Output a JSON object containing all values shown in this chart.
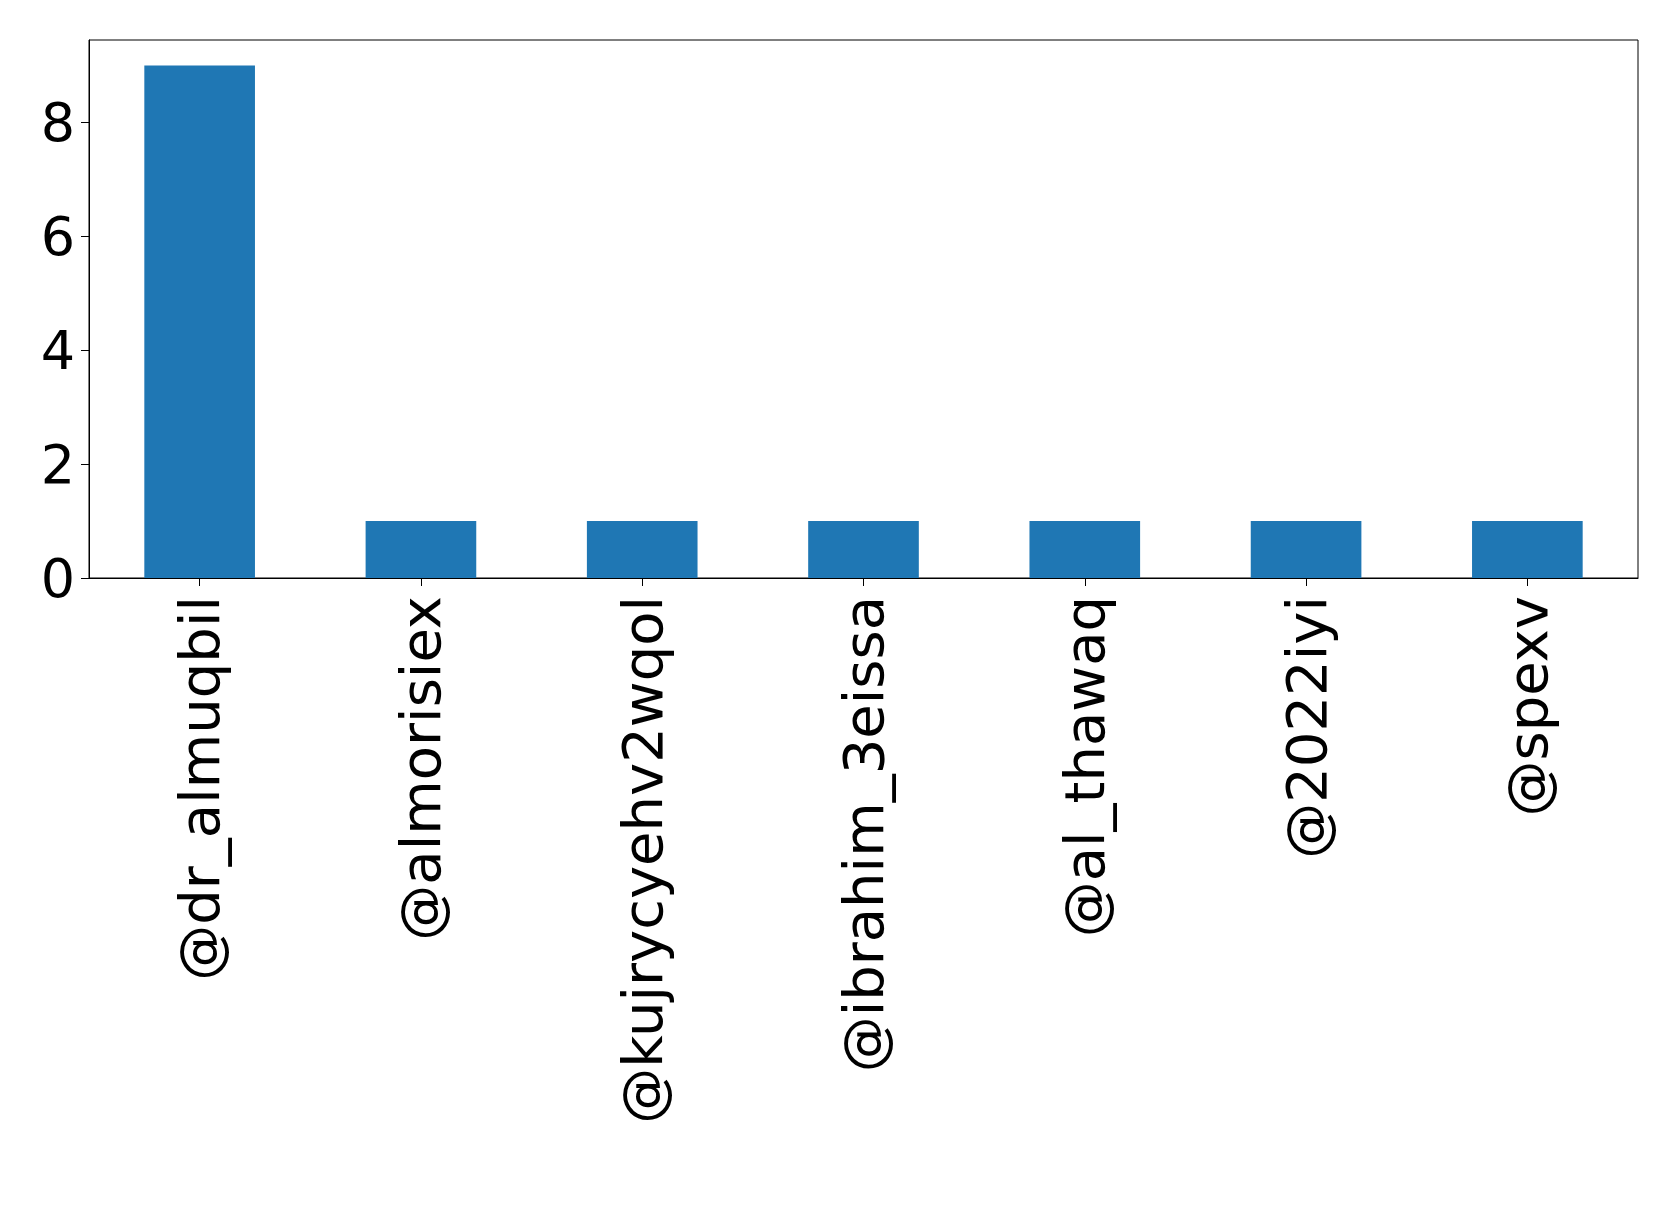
{
  "chart_data": {
    "type": "bar",
    "categories": [
      "@dr_almuqbil",
      "@almorisiex",
      "@kujrycyehv2wqol",
      "@ibrahim_3eissa",
      "@al_thawaq",
      "@2022iyi",
      "@spexv"
    ],
    "values": [
      9,
      1,
      1,
      1,
      1,
      1,
      1
    ],
    "color": "#1f77b4",
    "ylim": [
      0,
      9.45
    ],
    "yticks": [
      0,
      2,
      4,
      6,
      8
    ],
    "grid": false
  }
}
